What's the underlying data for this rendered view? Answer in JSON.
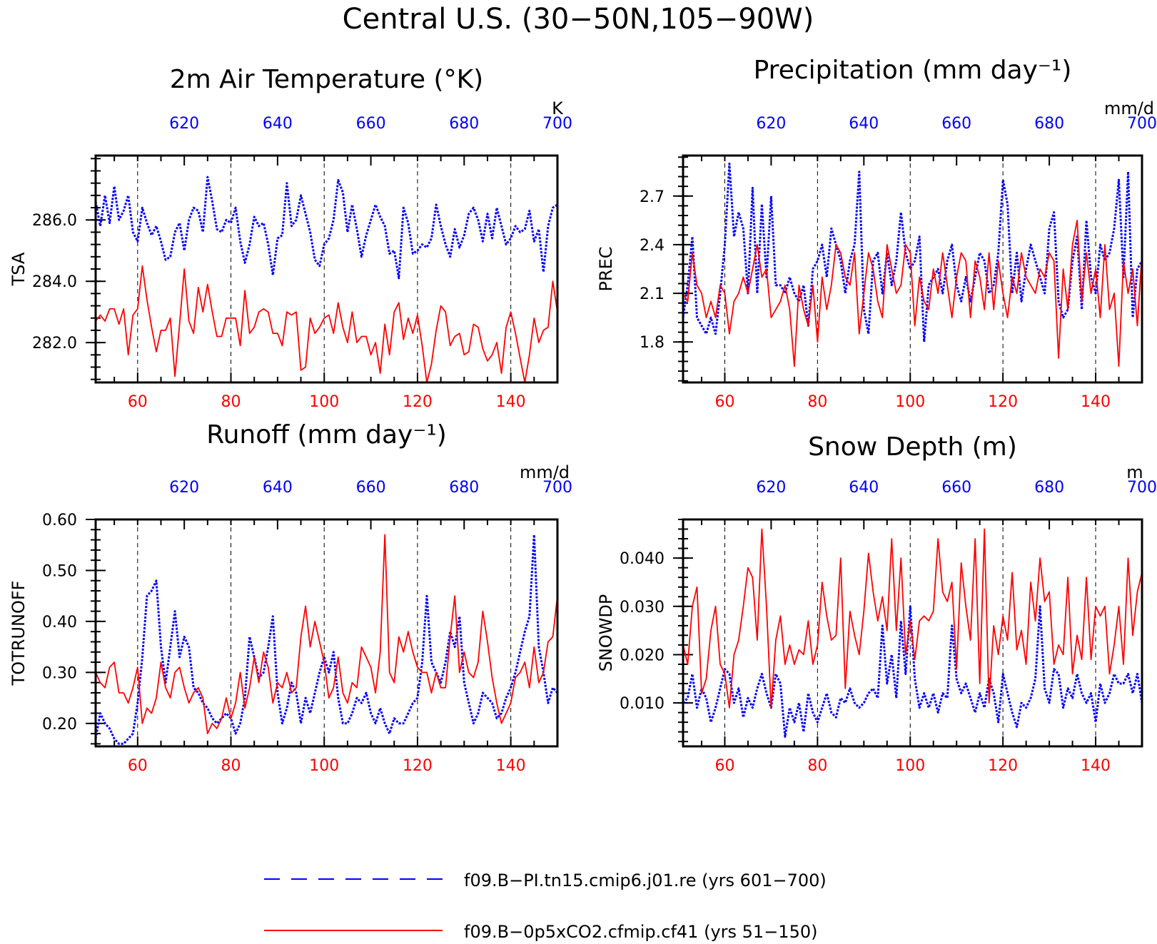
{
  "figure": {
    "title": "Central U.S. (30−50N,105−90W)"
  },
  "legend": [
    {
      "name": "f09.B−PI.tn15.cmip6.j01.re (yrs 601−700)",
      "color": "#0000ff",
      "dash": true
    },
    {
      "name": "f09.B−0p5xCO2.cfmip.cf41 (yrs 51−150)",
      "color": "#ff0000",
      "dash": false
    }
  ],
  "colors": {
    "bottom_axis": "#ff0000",
    "top_axis": "#0000ff",
    "frame": "#000000"
  },
  "chart_data": [
    {
      "type": "line",
      "title": "2m Air Temperature (°K)",
      "ylabel": "TSA",
      "units": "K",
      "xlim_bottom": [
        51,
        150
      ],
      "xlim_top": [
        601,
        700
      ],
      "bottom_ticks": [
        "60",
        "80",
        "100",
        "120",
        "140"
      ],
      "top_ticks": [
        "620",
        "640",
        "660",
        "680",
        "700"
      ],
      "ylim": [
        280.7,
        288.1
      ],
      "yticks": [
        "282.0",
        "284.0",
        "286.0"
      ],
      "ytick_values": [
        282,
        284,
        286
      ],
      "grid": "dashed vertical",
      "series": [
        {
          "name": "f09.B−PI.tn15.cmip6.j01.re (yrs 601−700)",
          "axis": "top",
          "style": "dotted",
          "color": "#0000ff",
          "values": [
            286.6,
            285.8,
            286.8,
            285.9,
            287.1,
            286.0,
            286.3,
            286.8,
            285.6,
            285.3,
            286.4,
            285.9,
            285.5,
            285.8,
            285.3,
            284.7,
            284.8,
            285.6,
            285.9,
            285.0,
            286.0,
            286.4,
            286.3,
            285.6,
            287.4,
            286.6,
            285.7,
            285.6,
            286.0,
            285.9,
            286.4,
            285.3,
            284.6,
            285.2,
            286.1,
            285.8,
            285.9,
            285.2,
            284.2,
            285.4,
            285.5,
            287.2,
            285.8,
            286.0,
            286.8,
            286.2,
            285.6,
            284.7,
            284.5,
            285.2,
            285.4,
            286.0,
            287.3,
            286.9,
            285.6,
            286.5,
            285.7,
            284.8,
            285.5,
            286.0,
            286.5,
            286.1,
            285.8,
            284.9,
            285.0,
            284.1,
            286.4,
            285.9,
            284.9,
            285.0,
            285.2,
            285.1,
            285.4,
            286.5,
            285.8,
            285.2,
            284.8,
            285.7,
            285.1,
            285.5,
            286.2,
            286.4,
            286.0,
            285.3,
            286.2,
            285.4,
            286.4,
            285.8,
            285.2,
            285.4,
            285.8,
            285.6,
            285.7,
            286.3,
            285.3,
            285.7,
            284.3,
            285.8,
            286.4,
            286.5
          ]
        },
        {
          "name": "f09.B−0p5xCO2.cfmip.cf41 (yrs 51−150)",
          "axis": "bottom",
          "style": "solid",
          "color": "#ff0000",
          "values": [
            282.7,
            282.9,
            282.7,
            283.1,
            283.1,
            282.6,
            283.1,
            281.6,
            282.9,
            283.1,
            284.5,
            283.4,
            282.5,
            281.7,
            282.4,
            282.4,
            282.8,
            280.9,
            282.6,
            284.4,
            282.7,
            282.3,
            283.8,
            283.0,
            283.9,
            283.0,
            282.2,
            282.2,
            282.8,
            282.8,
            282.8,
            281.9,
            283.7,
            282.3,
            282.5,
            283.0,
            283.1,
            283.0,
            282.3,
            282.3,
            281.9,
            283.0,
            282.9,
            283.0,
            281.1,
            281.2,
            282.8,
            282.3,
            282.5,
            282.8,
            282.9,
            282.3,
            283.3,
            282.5,
            282.0,
            283.0,
            282.0,
            282.2,
            282.2,
            281.6,
            282.0,
            281.0,
            282.6,
            281.6,
            283.0,
            283.3,
            282.1,
            282.8,
            282.3,
            282.9,
            281.9,
            280.7,
            281.3,
            282.4,
            283.2,
            283.0,
            281.9,
            282.2,
            282.3,
            281.6,
            281.7,
            282.6,
            282.5,
            281.8,
            281.4,
            281.6,
            282.0,
            281.0,
            282.5,
            283.0,
            282.3,
            281.5,
            280.7,
            281.6,
            282.8,
            282.0,
            282.4,
            282.5,
            284.0,
            283.0
          ]
        }
      ]
    },
    {
      "type": "line",
      "title": "Precipitation (mm day⁻¹)",
      "ylabel": "PREC",
      "units": "mm/d",
      "xlim_bottom": [
        51,
        150
      ],
      "xlim_top": [
        601,
        700
      ],
      "bottom_ticks": [
        "60",
        "80",
        "100",
        "120",
        "140"
      ],
      "top_ticks": [
        "620",
        "640",
        "660",
        "680",
        "700"
      ],
      "ylim": [
        1.55,
        2.95
      ],
      "yticks": [
        "1.8",
        "2.1",
        "2.4",
        "2.7"
      ],
      "ytick_values": [
        1.8,
        2.1,
        2.4,
        2.7
      ],
      "grid": "dashed vertical",
      "series": [
        {
          "name": "f09.B−PI.tn15.cmip6.j01.re (yrs 601−700)",
          "axis": "top",
          "style": "dotted",
          "color": "#0000ff",
          "values": [
            1.95,
            2.15,
            2.45,
            1.95,
            1.9,
            1.85,
            1.95,
            1.85,
            2.1,
            2.4,
            2.9,
            2.45,
            2.6,
            2.5,
            2.1,
            2.75,
            2.1,
            2.65,
            2.2,
            2.7,
            2.15,
            2.15,
            2.1,
            2.2,
            2.1,
            2.05,
            2.15,
            1.9,
            2.25,
            2.3,
            2.4,
            2.2,
            2.5,
            2.4,
            2.3,
            2.1,
            2.3,
            2.4,
            2.85,
            2.0,
            1.85,
            2.3,
            2.35,
            2.1,
            2.35,
            2.15,
            2.3,
            2.6,
            2.35,
            2.25,
            2.3,
            2.45,
            1.8,
            2.15,
            2.2,
            2.25,
            2.1,
            2.3,
            2.4,
            2.15,
            2.05,
            2.2,
            2.05,
            2.2,
            2.35,
            2.3,
            2.1,
            2.15,
            2.35,
            2.8,
            2.65,
            2.1,
            2.35,
            2.05,
            2.25,
            2.4,
            2.3,
            2.2,
            2.1,
            2.5,
            2.6,
            2.05,
            1.95,
            2.0,
            2.3,
            2.45,
            2.0,
            2.55,
            2.2,
            2.1,
            2.4,
            2.3,
            2.35,
            2.5,
            2.8,
            2.2,
            2.85,
            1.95,
            2.25,
            2.3
          ]
        },
        {
          "name": "f09.B−0p5xCO2.cfmip.cf41 (yrs 51−150)",
          "axis": "bottom",
          "style": "solid",
          "color": "#ff0000",
          "values": [
            2.1,
            2.05,
            2.35,
            2.15,
            2.1,
            1.95,
            2.05,
            1.95,
            2.15,
            2.1,
            1.85,
            2.05,
            2.1,
            2.2,
            2.1,
            2.25,
            2.4,
            2.2,
            2.25,
            1.95,
            2.0,
            2.05,
            2.15,
            2.0,
            1.65,
            2.15,
            2.0,
            1.9,
            2.15,
            1.8,
            2.2,
            2.0,
            2.15,
            2.4,
            2.35,
            2.2,
            2.15,
            2.35,
            1.85,
            2.1,
            2.35,
            2.25,
            2.05,
            1.95,
            2.4,
            2.25,
            2.1,
            2.15,
            2.4,
            2.35,
            1.9,
            2.2,
            2.05,
            2.0,
            2.25,
            2.1,
            2.35,
            2.15,
            1.95,
            2.2,
            2.35,
            2.3,
            1.95,
            2.3,
            2.2,
            2.0,
            2.35,
            2.0,
            2.3,
            2.1,
            1.95,
            2.2,
            2.1,
            2.35,
            2.2,
            2.15,
            2.1,
            2.25,
            2.2,
            2.35,
            2.3,
            1.7,
            2.25,
            2.0,
            2.4,
            2.55,
            2.05,
            2.35,
            2.1,
            2.25,
            1.95,
            2.4,
            2.0,
            2.1,
            1.65,
            2.3,
            2.1,
            2.25,
            1.9,
            2.35
          ]
        }
      ]
    },
    {
      "type": "line",
      "title": "Runoff (mm day⁻¹)",
      "ylabel": "TOTRUNOFF",
      "units": "mm/d",
      "xlim_bottom": [
        51,
        150
      ],
      "xlim_top": [
        601,
        700
      ],
      "bottom_ticks": [
        "60",
        "80",
        "100",
        "120",
        "140"
      ],
      "top_ticks": [
        "620",
        "640",
        "660",
        "680",
        "700"
      ],
      "ylim": [
        0.155,
        0.6
      ],
      "yticks": [
        "0.20",
        "0.30",
        "0.40",
        "0.50",
        "0.60"
      ],
      "ytick_values": [
        0.2,
        0.3,
        0.4,
        0.5,
        0.6
      ],
      "grid": "dashed vertical",
      "series": [
        {
          "name": "f09.B−PI.tn15.cmip6.j01.re (yrs 601−700)",
          "axis": "top",
          "style": "dotted",
          "color": "#0000ff",
          "values": [
            0.17,
            0.22,
            0.2,
            0.19,
            0.17,
            0.16,
            0.16,
            0.17,
            0.18,
            0.24,
            0.33,
            0.45,
            0.46,
            0.48,
            0.35,
            0.28,
            0.35,
            0.42,
            0.33,
            0.37,
            0.35,
            0.27,
            0.26,
            0.24,
            0.23,
            0.21,
            0.2,
            0.21,
            0.22,
            0.21,
            0.18,
            0.2,
            0.25,
            0.37,
            0.33,
            0.29,
            0.3,
            0.35,
            0.41,
            0.26,
            0.2,
            0.23,
            0.28,
            0.26,
            0.2,
            0.25,
            0.22,
            0.26,
            0.3,
            0.33,
            0.3,
            0.34,
            0.25,
            0.2,
            0.2,
            0.22,
            0.25,
            0.24,
            0.26,
            0.22,
            0.2,
            0.23,
            0.2,
            0.18,
            0.21,
            0.2,
            0.2,
            0.22,
            0.24,
            0.25,
            0.32,
            0.45,
            0.32,
            0.3,
            0.28,
            0.32,
            0.38,
            0.35,
            0.41,
            0.28,
            0.24,
            0.2,
            0.22,
            0.26,
            0.25,
            0.24,
            0.21,
            0.22,
            0.25,
            0.27,
            0.3,
            0.34,
            0.38,
            0.41,
            0.57,
            0.35,
            0.3,
            0.24,
            0.27,
            0.26
          ]
        },
        {
          "name": "f09.B−0p5xCO2.cfmip.cf41 (yrs 51−150)",
          "axis": "bottom",
          "style": "solid",
          "color": "#ff0000",
          "values": [
            0.3,
            0.28,
            0.27,
            0.31,
            0.32,
            0.26,
            0.26,
            0.24,
            0.27,
            0.31,
            0.2,
            0.23,
            0.22,
            0.25,
            0.32,
            0.27,
            0.25,
            0.3,
            0.31,
            0.27,
            0.24,
            0.26,
            0.27,
            0.25,
            0.18,
            0.2,
            0.19,
            0.21,
            0.25,
            0.21,
            0.24,
            0.3,
            0.23,
            0.27,
            0.33,
            0.28,
            0.34,
            0.31,
            0.24,
            0.28,
            0.27,
            0.3,
            0.26,
            0.27,
            0.37,
            0.43,
            0.35,
            0.4,
            0.36,
            0.32,
            0.25,
            0.27,
            0.33,
            0.26,
            0.24,
            0.28,
            0.27,
            0.35,
            0.33,
            0.31,
            0.26,
            0.34,
            0.57,
            0.3,
            0.28,
            0.37,
            0.34,
            0.38,
            0.34,
            0.31,
            0.3,
            0.3,
            0.26,
            0.3,
            0.27,
            0.27,
            0.37,
            0.45,
            0.3,
            0.34,
            0.3,
            0.29,
            0.32,
            0.42,
            0.36,
            0.29,
            0.24,
            0.2,
            0.22,
            0.24,
            0.29,
            0.3,
            0.32,
            0.27,
            0.35,
            0.28,
            0.3,
            0.36,
            0.37,
            0.45
          ]
        }
      ]
    },
    {
      "type": "line",
      "title": "Snow Depth (m)",
      "ylabel": "SNOWDP",
      "units": "m",
      "xlim_bottom": [
        51,
        150
      ],
      "xlim_top": [
        601,
        700
      ],
      "bottom_ticks": [
        "60",
        "80",
        "100",
        "120",
        "140"
      ],
      "top_ticks": [
        "620",
        "640",
        "660",
        "680",
        "700"
      ],
      "ylim": [
        0.001,
        0.048
      ],
      "yticks": [
        "0.010",
        "0.020",
        "0.030",
        "0.040"
      ],
      "ytick_values": [
        0.01,
        0.02,
        0.03,
        0.04
      ],
      "grid": "dashed vertical",
      "series": [
        {
          "name": "f09.B−PI.tn15.cmip6.j01.re (yrs 601−700)",
          "axis": "top",
          "style": "dotted",
          "color": "#0000ff",
          "values": [
            0.01,
            0.011,
            0.016,
            0.009,
            0.013,
            0.011,
            0.006,
            0.009,
            0.013,
            0.017,
            0.016,
            0.01,
            0.013,
            0.007,
            0.011,
            0.009,
            0.013,
            0.016,
            0.012,
            0.009,
            0.016,
            0.014,
            0.003,
            0.009,
            0.006,
            0.01,
            0.004,
            0.012,
            0.008,
            0.006,
            0.009,
            0.012,
            0.008,
            0.007,
            0.011,
            0.01,
            0.013,
            0.01,
            0.009,
            0.01,
            0.012,
            0.013,
            0.011,
            0.026,
            0.014,
            0.02,
            0.011,
            0.027,
            0.016,
            0.03,
            0.015,
            0.009,
            0.012,
            0.009,
            0.012,
            0.008,
            0.012,
            0.011,
            0.026,
            0.015,
            0.012,
            0.014,
            0.011,
            0.008,
            0.012,
            0.009,
            0.015,
            0.012,
            0.006,
            0.016,
            0.012,
            0.008,
            0.005,
            0.01,
            0.009,
            0.011,
            0.015,
            0.03,
            0.013,
            0.01,
            0.017,
            0.016,
            0.009,
            0.013,
            0.011,
            0.016,
            0.012,
            0.01,
            0.012,
            0.006,
            0.014,
            0.01,
            0.012,
            0.016,
            0.014,
            0.014,
            0.016,
            0.012,
            0.016,
            0.01
          ]
        },
        {
          "name": "f09.B−0p5xCO2.cfmip.cf41 (yrs 51−150)",
          "axis": "bottom",
          "style": "solid",
          "color": "#ff0000",
          "values": [
            0.022,
            0.018,
            0.03,
            0.034,
            0.012,
            0.015,
            0.025,
            0.03,
            0.018,
            0.016,
            0.009,
            0.02,
            0.023,
            0.03,
            0.038,
            0.036,
            0.023,
            0.046,
            0.03,
            0.009,
            0.023,
            0.028,
            0.018,
            0.022,
            0.018,
            0.021,
            0.02,
            0.027,
            0.018,
            0.022,
            0.035,
            0.028,
            0.023,
            0.024,
            0.04,
            0.013,
            0.029,
            0.024,
            0.02,
            0.029,
            0.041,
            0.033,
            0.027,
            0.032,
            0.025,
            0.044,
            0.025,
            0.04,
            0.02,
            0.027,
            0.019,
            0.027,
            0.028,
            0.027,
            0.029,
            0.044,
            0.033,
            0.031,
            0.035,
            0.017,
            0.039,
            0.03,
            0.023,
            0.044,
            0.014,
            0.046,
            0.01,
            0.026,
            0.02,
            0.028,
            0.023,
            0.037,
            0.021,
            0.025,
            0.018,
            0.035,
            0.027,
            0.04,
            0.031,
            0.033,
            0.018,
            0.022,
            0.02,
            0.036,
            0.016,
            0.024,
            0.019,
            0.036,
            0.019,
            0.03,
            0.028,
            0.03,
            0.016,
            0.022,
            0.03,
            0.018,
            0.04,
            0.024,
            0.033,
            0.037
          ]
        }
      ]
    }
  ]
}
